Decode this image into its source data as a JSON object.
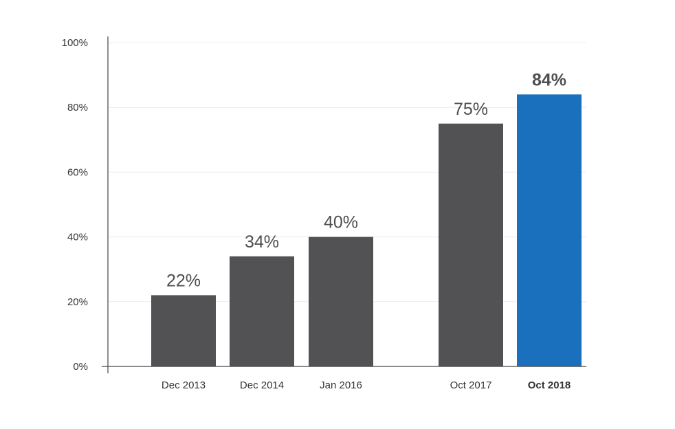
{
  "chart_data": {
    "type": "bar",
    "categories": [
      "Dec 2013",
      "Dec 2014",
      "Jan 2016",
      "Oct 2017",
      "Oct 2018"
    ],
    "values": [
      22,
      34,
      40,
      75,
      84
    ],
    "data_labels": [
      "22%",
      "34%",
      "40%",
      "75%",
      "84%"
    ],
    "highlight_index": 4,
    "ylim": [
      0,
      100
    ],
    "yticks": [
      0,
      20,
      40,
      60,
      80,
      100
    ],
    "ytick_labels": [
      "0%",
      "20%",
      "40%",
      "60%",
      "80%",
      "100%"
    ],
    "grid": true,
    "title": "",
    "xlabel": "",
    "ylabel": "",
    "colors": {
      "bar": "#525255",
      "highlight": "#1a70bc",
      "grid": "#ececec",
      "axis": "#444444",
      "text": "#333333",
      "label": "#4f4f52"
    }
  }
}
